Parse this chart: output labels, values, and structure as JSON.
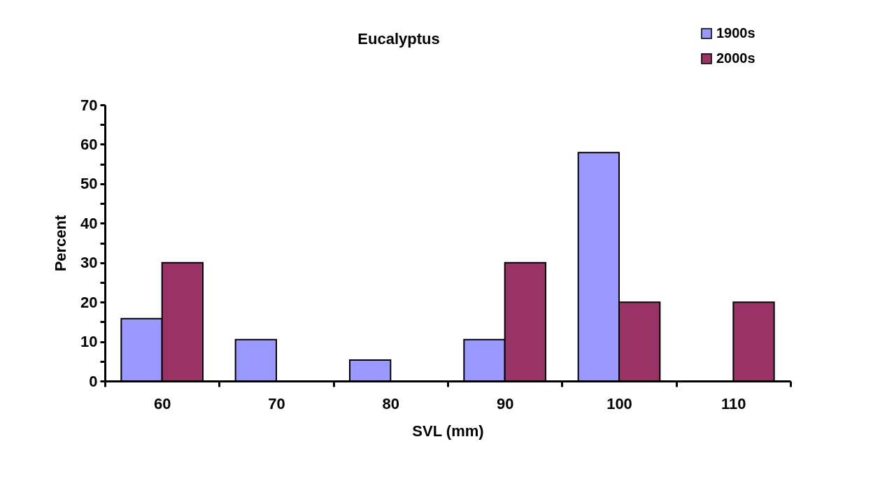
{
  "chart_data": {
    "type": "bar",
    "title": "Eucalyptus",
    "xlabel": "SVL (mm)",
    "ylabel": "Percent",
    "categories": [
      "60",
      "70",
      "80",
      "90",
      "100",
      "110"
    ],
    "series": [
      {
        "name": "1900s",
        "color": "#9999ff",
        "values": [
          15.8,
          10.5,
          5.3,
          10.5,
          57.9,
          0
        ]
      },
      {
        "name": "2000s",
        "color": "#993366",
        "values": [
          30,
          0,
          0,
          30,
          20,
          20
        ]
      }
    ],
    "ylim": [
      0,
      70
    ],
    "yticks": [
      0,
      {
        "value": 5,
        "label": null
      },
      10,
      {
        "value": 15,
        "label": null
      },
      20,
      {
        "value": 25,
        "label": null
      },
      30,
      {
        "value": 35,
        "label": null
      },
      40,
      {
        "value": 45,
        "label": null
      },
      50,
      {
        "value": 55,
        "label": null
      },
      60,
      {
        "value": 65,
        "label": null
      },
      70
    ],
    "grid": false,
    "legend": "top right"
  }
}
